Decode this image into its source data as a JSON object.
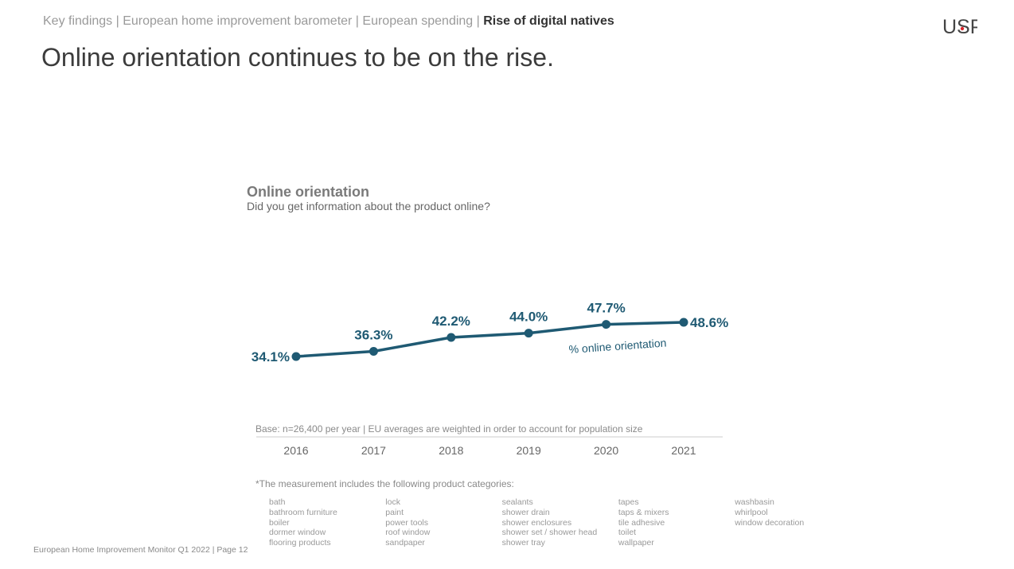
{
  "header": {
    "breadcrumb_path": "Key findings | European home improvement barometer | European spending |",
    "breadcrumb_current": "Rise of digital natives",
    "logo_text": "USP"
  },
  "page_title": "Online orientation continues to be on the rise.",
  "chart_data": {
    "type": "line",
    "title": "Online orientation",
    "subtitle": "Did you get information about the product online?",
    "categories": [
      "2016",
      "2017",
      "2018",
      "2019",
      "2020",
      "2021"
    ],
    "series": [
      {
        "name": "% online orientation",
        "values": [
          34.1,
          36.3,
          42.2,
          44.0,
          47.7,
          48.6
        ],
        "labels": [
          "34.1%",
          "36.3%",
          "42.2%",
          "44.0%",
          "47.7%",
          "48.6%"
        ],
        "color": "#1f5a73"
      }
    ],
    "grid": false
  },
  "base_note": "Base: n=26,400 per year | EU averages are weighted in order to account for population size",
  "footnote": "*The measurement includes the following product categories:",
  "product_categories": [
    [
      "bath",
      "bathroom furniture",
      "boiler",
      "dormer window",
      "flooring products"
    ],
    [
      "lock",
      "paint",
      "power tools",
      "roof window",
      "sandpaper"
    ],
    [
      "sealants",
      "shower drain",
      "shower enclosures",
      "shower set / shower head",
      "shower tray"
    ],
    [
      "tapes",
      "taps & mixers",
      "tile adhesive",
      "toilet",
      "wallpaper"
    ],
    [
      "washbasin",
      "whirlpool",
      "window decoration"
    ]
  ],
  "page_footer": "European Home Improvement Monitor Q1 2022 | Page 12",
  "colors": {
    "accent": "#1f5a73",
    "muted_text": "#9a9a9a",
    "axis": "#dddddd"
  }
}
